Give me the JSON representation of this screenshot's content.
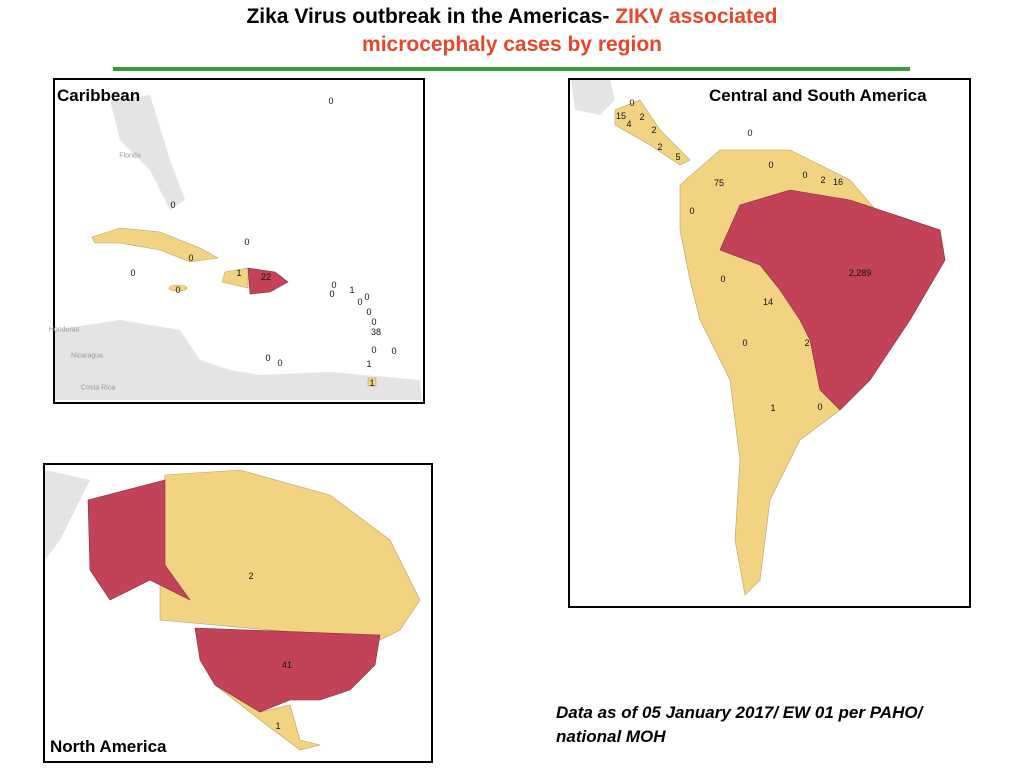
{
  "title": {
    "black": "Zika Virus outbreak in the Americas-",
    "red_line1": "ZIKV associated",
    "red_line2": "microcephaly cases by region"
  },
  "caribbean": {
    "title": "Caribbean",
    "places": [
      "Florida",
      "Honduras",
      "Nicaragua",
      "Costa Rica"
    ],
    "labels": [
      "0",
      "0",
      "0",
      "0",
      "0",
      "1",
      "22",
      "0",
      "0",
      "1",
      "0",
      "0",
      "0",
      "0",
      "0",
      "38",
      "0",
      "0",
      "0",
      "0",
      "1",
      "1"
    ]
  },
  "central_south_america": {
    "title": "Central and South America",
    "labels": [
      "0",
      "15",
      "2",
      "4",
      "2",
      "2",
      "5",
      "0",
      "0",
      "0",
      "2",
      "16",
      "75",
      "0",
      "2,289",
      "0",
      "14",
      "0",
      "2",
      "1",
      "0"
    ]
  },
  "north_america": {
    "title": "North America",
    "labels": [
      "2",
      "41",
      "1"
    ]
  },
  "footnote": {
    "lines": [
      "Data as of 05 January 2017/ EW 01 per PAHO/",
      "national MOH"
    ]
  }
}
